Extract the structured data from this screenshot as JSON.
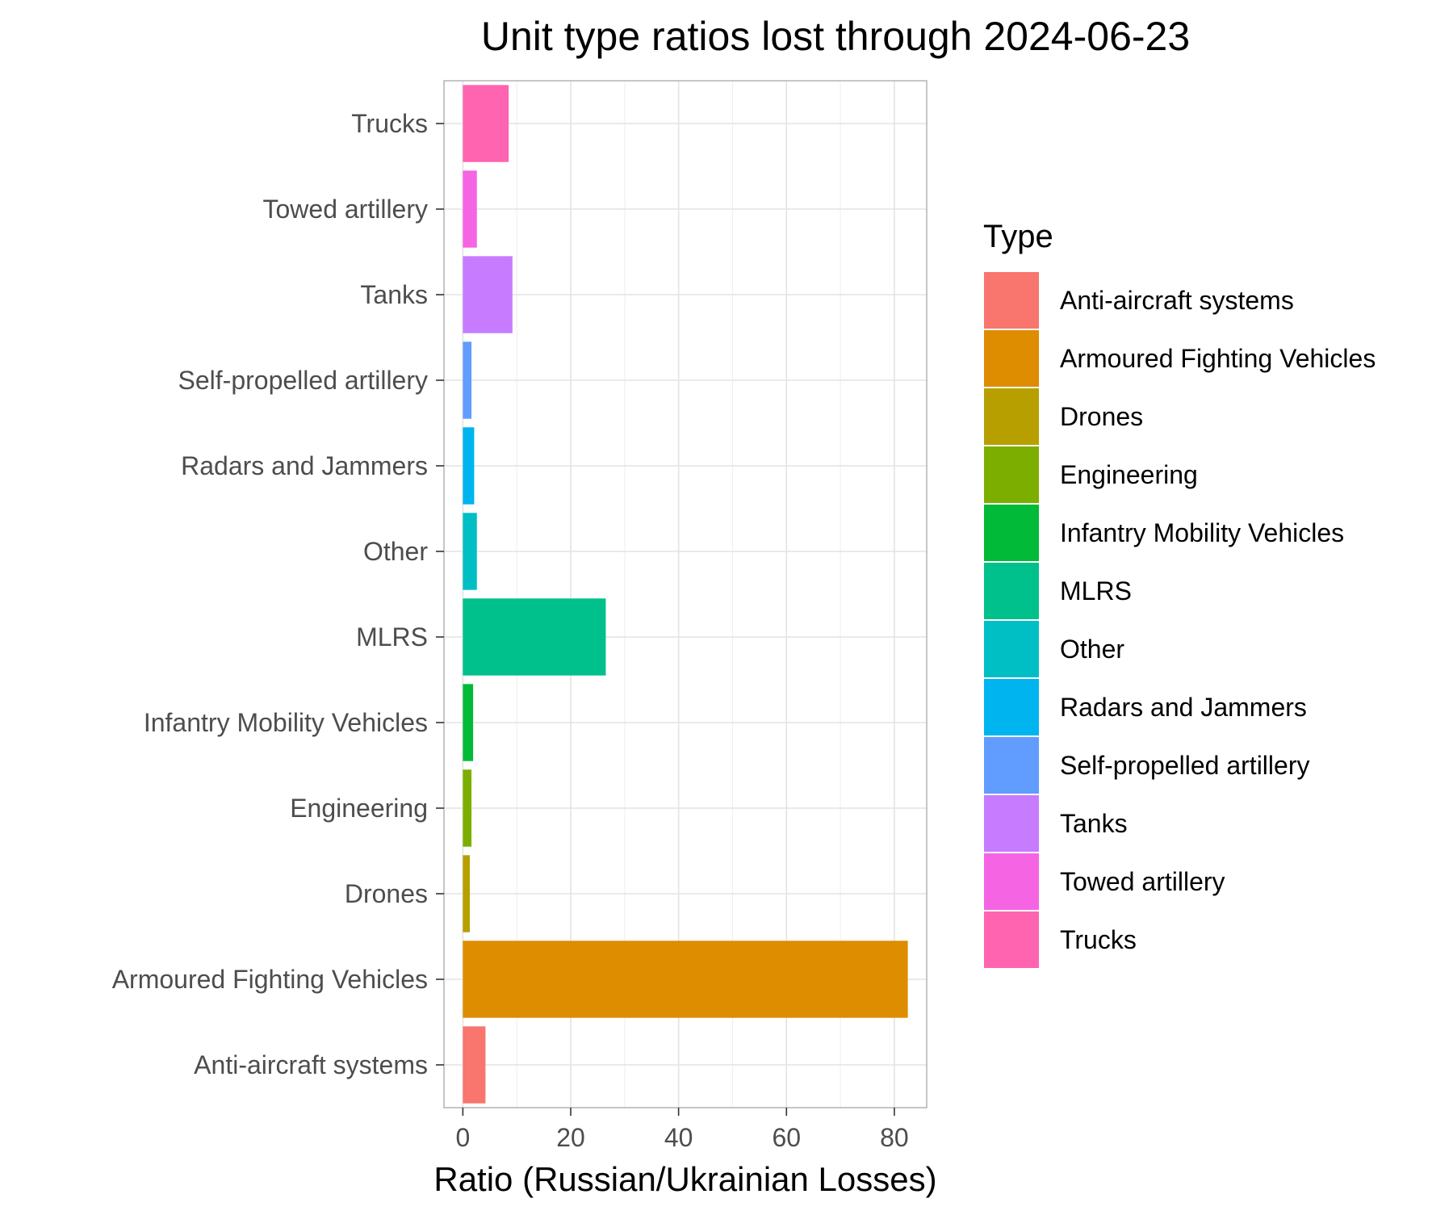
{
  "chart_data": {
    "type": "bar",
    "orientation": "horizontal",
    "title": "Unit type ratios lost through 2024-06-23",
    "xlabel": "Ratio (Russian/Ukrainian Losses)",
    "ylabel": "",
    "xlim": [
      -3.5,
      86
    ],
    "xticks": [
      0,
      20,
      40,
      60,
      80
    ],
    "grid": true,
    "legend": {
      "title": "Type",
      "position": "right"
    },
    "categories": [
      "Anti-aircraft systems",
      "Armoured Fighting Vehicles",
      "Drones",
      "Engineering",
      "Infantry Mobility Vehicles",
      "MLRS",
      "Other",
      "Radars and Jammers",
      "Self-propelled artillery",
      "Tanks",
      "Towed artillery",
      "Trucks"
    ],
    "values": [
      4.2,
      82.5,
      1.3,
      1.6,
      1.9,
      26.5,
      2.6,
      2.1,
      1.6,
      9.2,
      2.6,
      8.5
    ],
    "colors": [
      "#F8766D",
      "#DE8C00",
      "#B79F00",
      "#7CAE00",
      "#00BA38",
      "#00C08B",
      "#00BFC4",
      "#00B4F0",
      "#619CFF",
      "#C77CFF",
      "#F564E3",
      "#FF64B0"
    ]
  }
}
